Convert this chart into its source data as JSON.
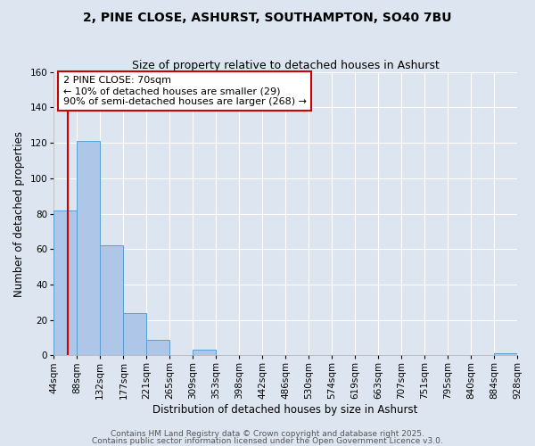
{
  "title": "2, PINE CLOSE, ASHURST, SOUTHAMPTON, SO40 7BU",
  "subtitle": "Size of property relative to detached houses in Ashurst",
  "xlabel": "Distribution of detached houses by size in Ashurst",
  "ylabel": "Number of detached properties",
  "bin_edges": [
    44,
    88,
    132,
    177,
    221,
    265,
    309,
    353,
    398,
    442,
    486,
    530,
    574,
    619,
    663,
    707,
    751,
    795,
    840,
    884,
    928
  ],
  "bin_labels": [
    "44sqm",
    "88sqm",
    "132sqm",
    "177sqm",
    "221sqm",
    "265sqm",
    "309sqm",
    "353sqm",
    "398sqm",
    "442sqm",
    "486sqm",
    "530sqm",
    "574sqm",
    "619sqm",
    "663sqm",
    "707sqm",
    "751sqm",
    "795sqm",
    "840sqm",
    "884sqm",
    "928sqm"
  ],
  "bar_heights": [
    82,
    121,
    62,
    24,
    9,
    0,
    3,
    0,
    0,
    0,
    0,
    0,
    0,
    0,
    0,
    0,
    0,
    0,
    0,
    1,
    0
  ],
  "bar_color": "#aec6e8",
  "bar_edge_color": "#5a9fd4",
  "ylim": [
    0,
    160
  ],
  "yticks": [
    0,
    20,
    40,
    60,
    80,
    100,
    120,
    140,
    160
  ],
  "property_size": 70,
  "red_line_color": "#cc0000",
  "annotation_title": "2 PINE CLOSE: 70sqm",
  "annotation_line1": "← 10% of detached houses are smaller (29)",
  "annotation_line2": "90% of semi-detached houses are larger (268) →",
  "annotation_box_color": "#cc0000",
  "bg_color": "#dde6f0",
  "grid_color": "#ffffff",
  "footer1": "Contains HM Land Registry data © Crown copyright and database right 2025.",
  "footer2": "Contains public sector information licensed under the Open Government Licence v3.0.",
  "title_fontsize": 10,
  "subtitle_fontsize": 9,
  "axis_label_fontsize": 8.5,
  "tick_fontsize": 7.5,
  "annotation_fontsize": 8,
  "footer_fontsize": 6.5
}
